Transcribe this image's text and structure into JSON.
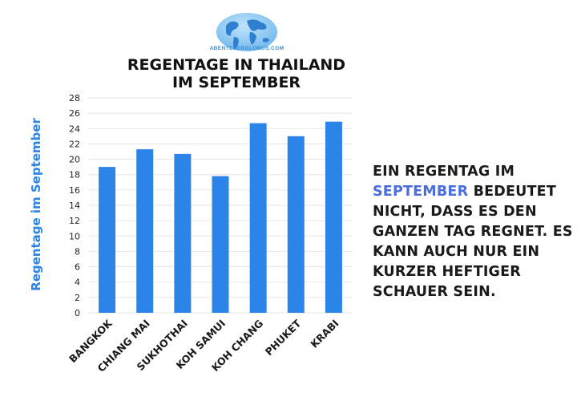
{
  "logo": {
    "text": "ABENTEUERGLOBUS.COM"
  },
  "chart_data": {
    "type": "bar",
    "title_lines": [
      "REGENTAGE IN THAILAND",
      "IM SEPTEMBER"
    ],
    "xlabel": "",
    "ylabel": "Regentage im September",
    "categories": [
      "BANGKOK",
      "CHIANG MAI",
      "SUKHOTHAI",
      "KOH SAMUI",
      "KOH CHANG",
      "PHUKET",
      "KRABI"
    ],
    "values": [
      19,
      21.3,
      20.7,
      17.8,
      24.7,
      23,
      24.9
    ],
    "ylim": [
      0,
      28
    ],
    "yticks": [
      "0",
      "2",
      "4",
      "6",
      "8",
      "10",
      "12",
      "14",
      "16",
      "18",
      "20",
      "22",
      "24",
      "26",
      "28"
    ],
    "grid": true,
    "legend": "none",
    "bar_color": "#2b84e8",
    "ylabel_color": "#2b84e8"
  },
  "note": {
    "pre": "EIN REGENTAG IM",
    "highlight": "SEPTEMBER",
    "post": "BEDEUTET NICHT, DASS ES DEN GANZEN TAG REGNET. ES KANN AUCH NUR EIN KURZER HEFTIGER SCHAUER SEIN.",
    "highlight_color": "#4a6ee0"
  }
}
